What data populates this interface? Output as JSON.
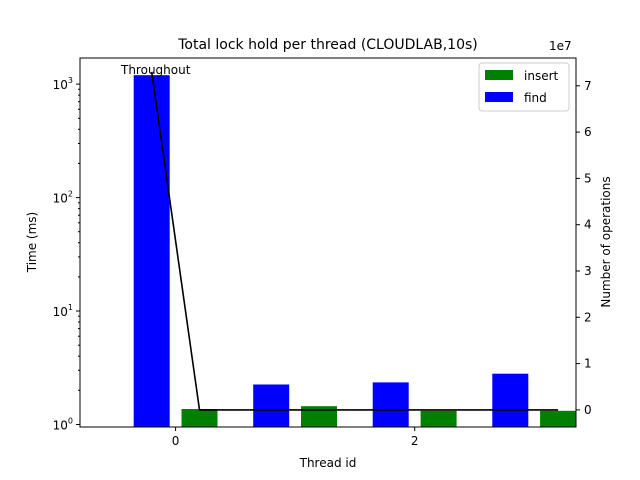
{
  "chart_data": {
    "type": "bar",
    "title": "Total lock hold per thread (CLOUDLAB,10s)",
    "xlabel": "Thread id",
    "ylabel": "Time (ms)",
    "y2label": "Number of operations",
    "y2_offset_label": "1e7",
    "yscale": "log",
    "ylim": [
      0.95,
      1700
    ],
    "y2lim": [
      -3700000,
      76000000
    ],
    "xlim": [
      -0.8,
      3.35
    ],
    "x_ticks": [
      {
        "value": 0,
        "label": "0"
      },
      {
        "value": 2,
        "label": "2"
      }
    ],
    "y_ticks": [
      {
        "value": 1,
        "label": "10",
        "exp": "0"
      },
      {
        "value": 10,
        "label": "10",
        "exp": "1"
      },
      {
        "value": 100,
        "label": "10",
        "exp": "2"
      },
      {
        "value": 1000,
        "label": "10",
        "exp": "3"
      }
    ],
    "y2_ticks": [
      {
        "value": 0,
        "label": "0"
      },
      {
        "value": 10000000,
        "label": "1"
      },
      {
        "value": 20000000,
        "label": "2"
      },
      {
        "value": 30000000,
        "label": "3"
      },
      {
        "value": 40000000,
        "label": "4"
      },
      {
        "value": 50000000,
        "label": "5"
      },
      {
        "value": 60000000,
        "label": "6"
      },
      {
        "value": 70000000,
        "label": "7"
      }
    ],
    "series": [
      {
        "name": "insert",
        "color": "#008000",
        "x": [
          0.2,
          1.2,
          2.2,
          3.2
        ],
        "values": [
          1.37,
          1.45,
          1.32,
          1.32
        ]
      },
      {
        "name": "find",
        "color": "#0000ff",
        "x": [
          -0.2,
          0.8,
          1.8,
          2.8
        ],
        "values": [
          1200,
          2.25,
          2.35,
          2.8
        ]
      }
    ],
    "throughput_line": {
      "color": "#000000",
      "x": [
        -0.2,
        0.2,
        3.2
      ],
      "values": [
        73000000,
        0,
        0
      ],
      "annotation": "Throughout"
    },
    "legend": {
      "position": "top-right"
    }
  }
}
